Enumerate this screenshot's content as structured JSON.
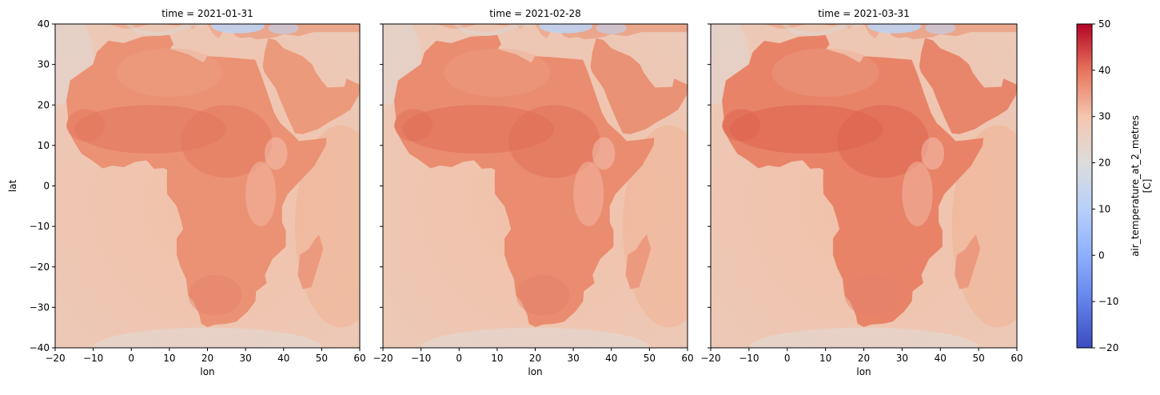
{
  "chart_data": {
    "type": "heatmap",
    "panels": [
      {
        "title": "time = 2021-01-31",
        "intensity": 0.0
      },
      {
        "title": "time = 2021-02-28",
        "intensity": 0.35
      },
      {
        "title": "time = 2021-03-31",
        "intensity": 0.85
      }
    ],
    "xlabel": "lon",
    "ylabel": "lat",
    "xlim": [
      -20,
      60
    ],
    "ylim": [
      -40,
      40
    ],
    "xticks": [
      -20,
      -10,
      0,
      10,
      20,
      30,
      40,
      50,
      60
    ],
    "yticks": [
      -40,
      -30,
      -20,
      -10,
      0,
      10,
      20,
      30,
      40
    ],
    "colorbar": {
      "label_line1": "air_temperature_at_2_metres",
      "label_line2": "[C]",
      "range": [
        -20,
        50
      ],
      "ticks": [
        -20,
        -10,
        0,
        10,
        20,
        30,
        40,
        50
      ],
      "colormap": "coolwarm"
    },
    "colors": {
      "ocean": "#f0c4ad",
      "land": "#ec9274",
      "land_hot": "#dd5f4a",
      "cold": "#bcd3f6",
      "cb_low": "#3b4cc0",
      "cb_mid": "#dddcdc",
      "cb_high": "#b40426"
    }
  }
}
